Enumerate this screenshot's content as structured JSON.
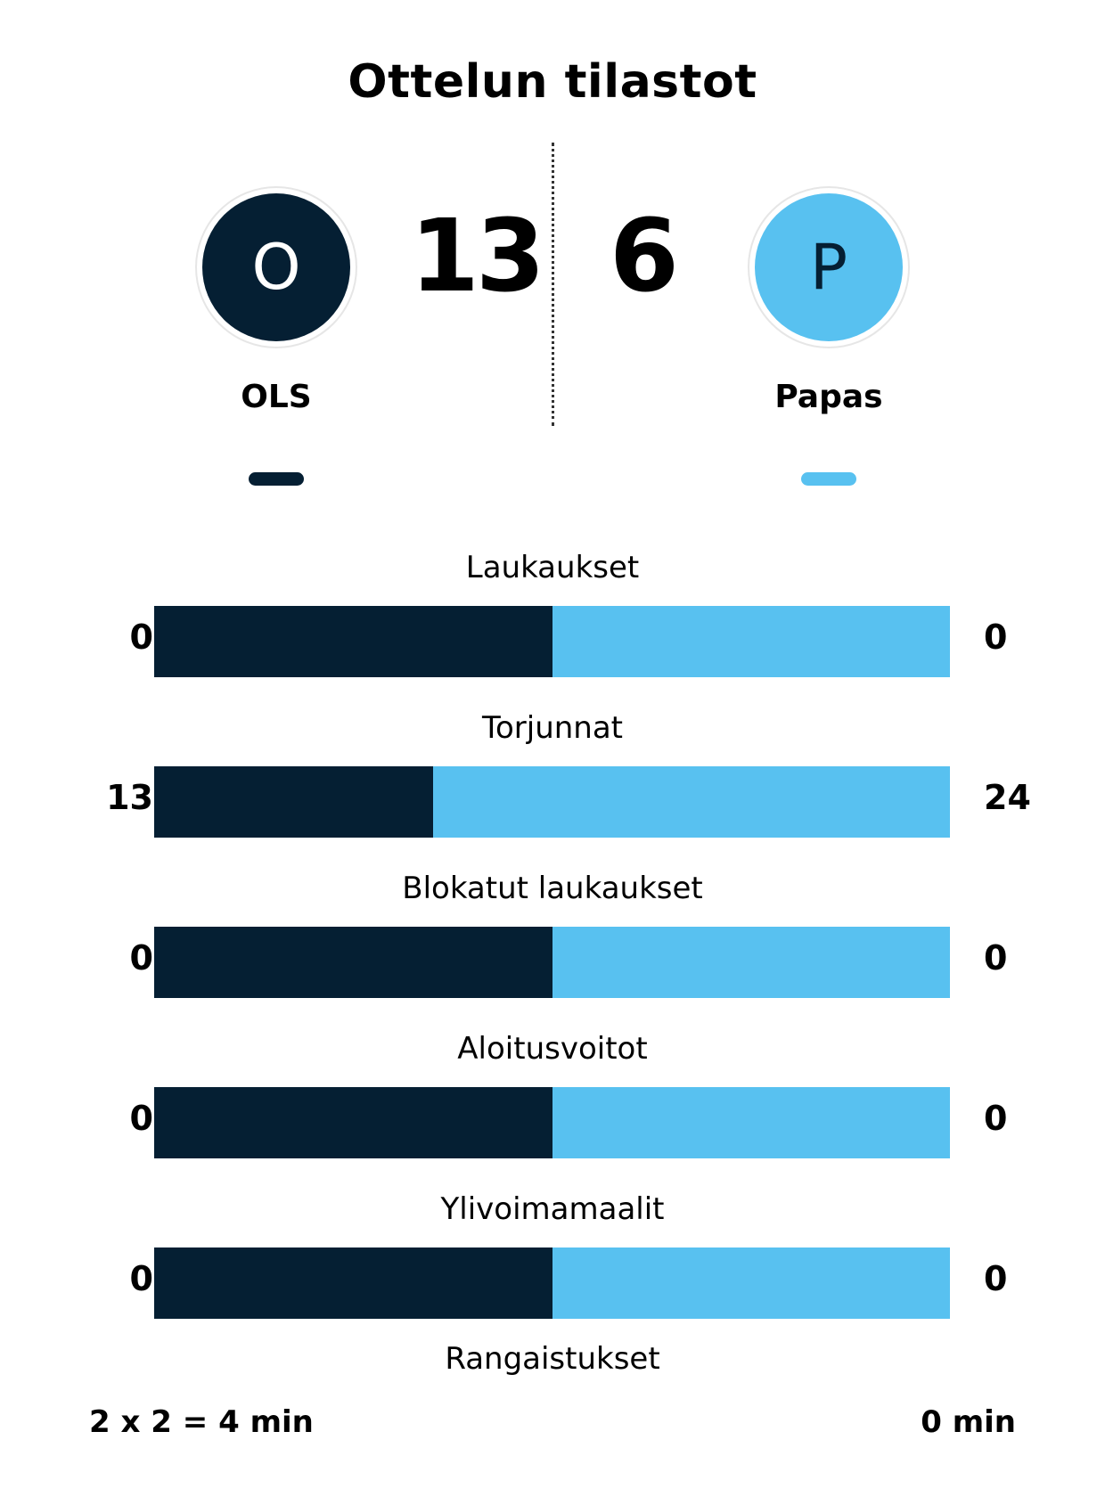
{
  "title": "Ottelun tilastot",
  "colors": {
    "home": "#051f33",
    "away": "#58c1f0"
  },
  "home": {
    "logo_letter": "O",
    "name": "OLS",
    "score": "13"
  },
  "away": {
    "logo_letter": "P",
    "name": "Papas",
    "score": "6"
  },
  "stats": [
    {
      "label": "Laukaukset",
      "home": "0",
      "away": "0",
      "home_share": 0.5
    },
    {
      "label": "Torjunnat",
      "home": "13",
      "away": "24",
      "home_share": 0.35
    },
    {
      "label": "Blokatut laukaukset",
      "home": "0",
      "away": "0",
      "home_share": 0.5
    },
    {
      "label": "Aloitusvoitot",
      "home": "0",
      "away": "0",
      "home_share": 0.5
    },
    {
      "label": "Ylivoimamaalit",
      "home": "0",
      "away": "0",
      "home_share": 0.5
    }
  ],
  "penalties": {
    "label": "Rangaistukset",
    "home": "2 x 2 = 4 min",
    "away": "0 min"
  }
}
